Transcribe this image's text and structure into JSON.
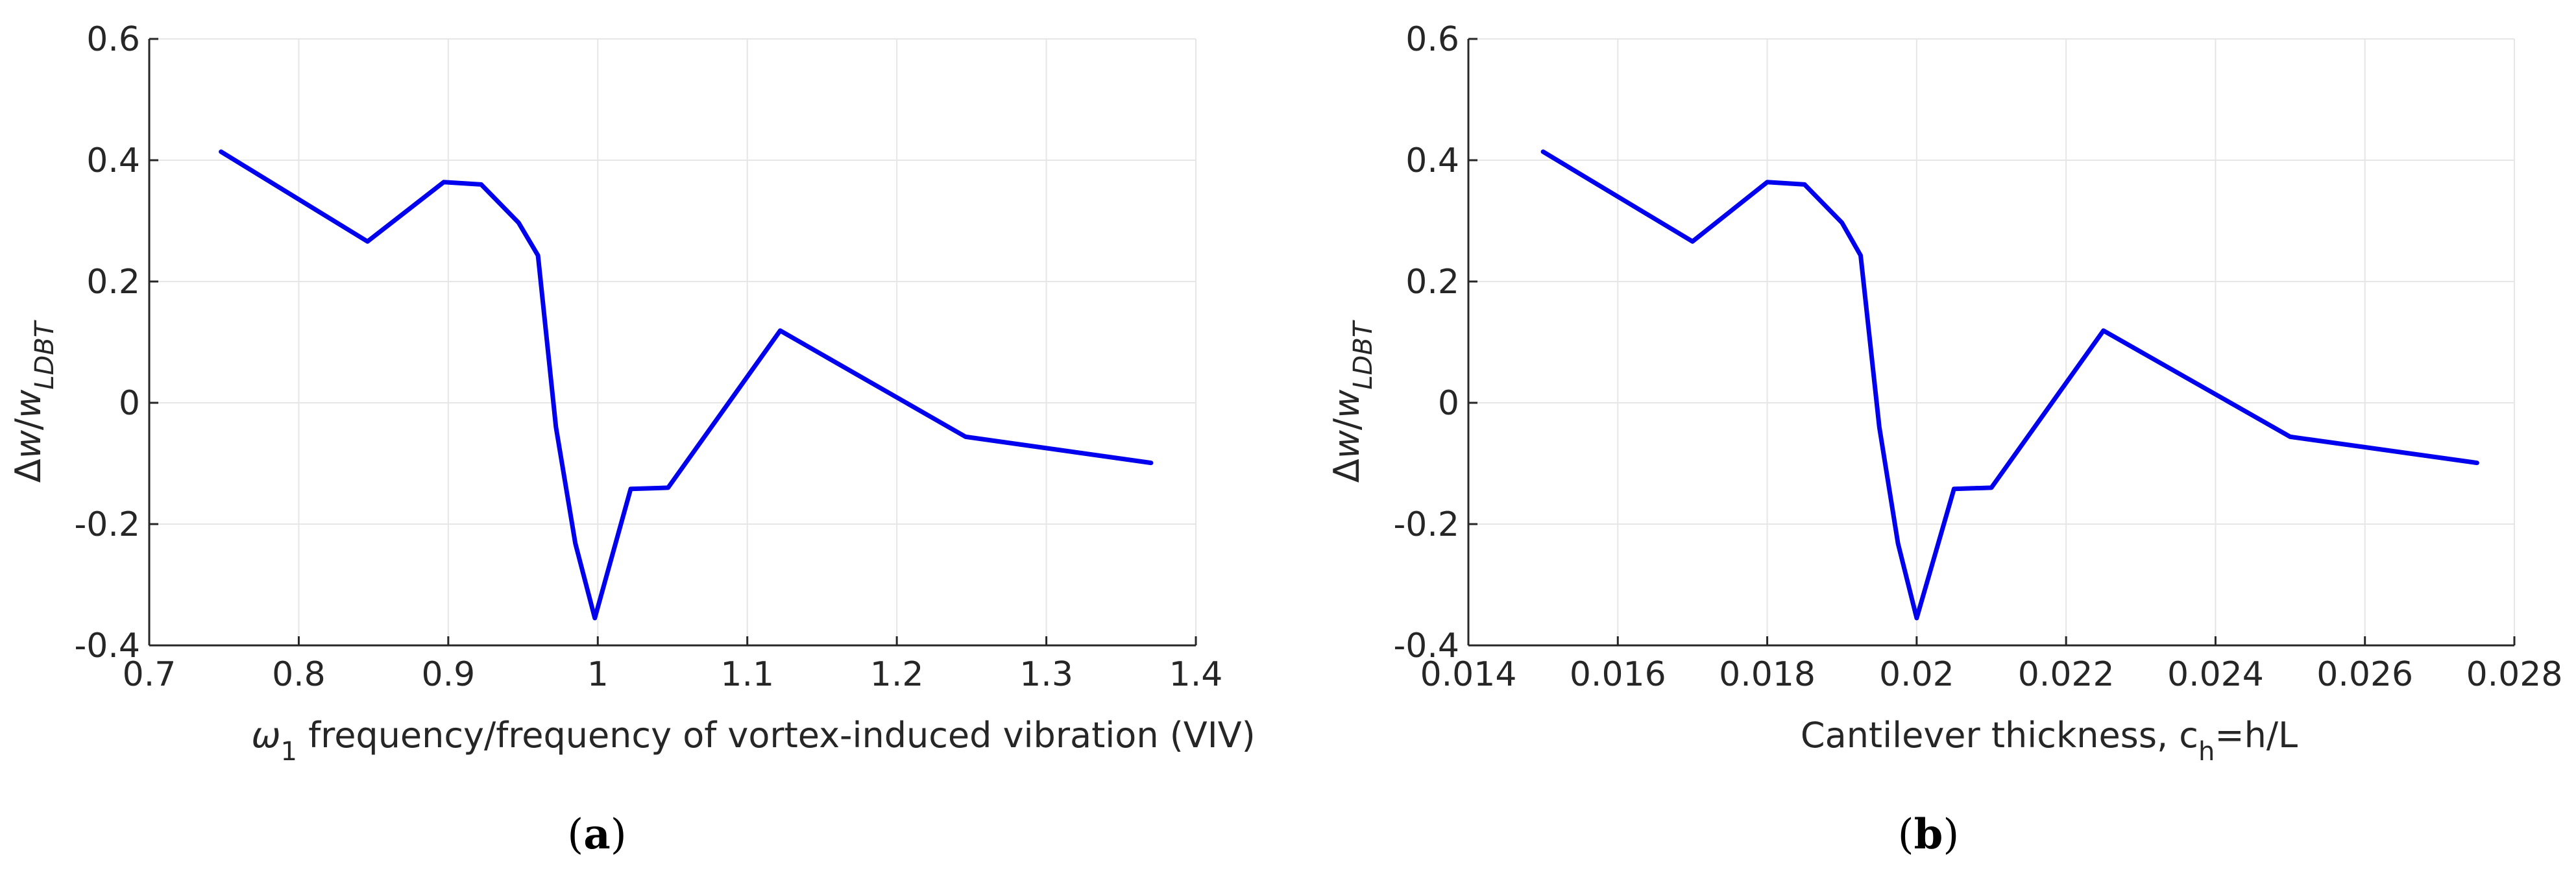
{
  "figure": {
    "colors": {
      "series": "#0000ee",
      "grid": "#e6e6e6",
      "axis": "#262626"
    }
  },
  "chart_data": [
    {
      "type": "line",
      "panel": "a",
      "title": "",
      "xlabel": {
        "symbol": "ω",
        "subscript": "1",
        "text": " frequency/frequency of vortex-induced vibration (VIV)"
      },
      "ylabel": {
        "prefix": "Δ",
        "var": "w",
        "sep": "/",
        "var2": "w",
        "subscript": "LDBT"
      },
      "xlim": [
        0.7,
        1.4
      ],
      "ylim": [
        -0.4,
        0.6
      ],
      "xticks": [
        0.7,
        0.8,
        0.9,
        1.0,
        1.1,
        1.2,
        1.3,
        1.4
      ],
      "xtick_labels": [
        "0.7",
        "0.8",
        "0.9",
        "1",
        "1.1",
        "1.2",
        "1.3",
        "1.4"
      ],
      "yticks": [
        -0.4,
        -0.2,
        0,
        0.2,
        0.4,
        0.6
      ],
      "ytick_labels": [
        "-0.4",
        "-0.2",
        "0",
        "0.2",
        "0.4",
        "0.6"
      ],
      "grid": true,
      "caption": {
        "open": "(",
        "letter": "a",
        "close": ")"
      },
      "series": [
        {
          "name": "Δw/w_LDBT",
          "x": [
            0.748,
            0.846,
            0.897,
            0.922,
            0.947,
            0.96,
            0.972,
            0.985,
            0.998,
            1.022,
            1.047,
            1.122,
            1.246,
            1.37
          ],
          "y": [
            0.414,
            0.266,
            0.364,
            0.36,
            0.297,
            0.243,
            -0.04,
            -0.232,
            -0.355,
            -0.142,
            -0.14,
            0.119,
            -0.056,
            -0.099
          ]
        }
      ]
    },
    {
      "type": "line",
      "panel": "b",
      "title": "",
      "xlabel": {
        "text": "Cantilever thickness, c",
        "subscript": "h",
        "suffix": "=h/L"
      },
      "ylabel": {
        "prefix": "Δ",
        "var": "w",
        "sep": "/",
        "var2": "w",
        "subscript": "LDBT"
      },
      "xlim": [
        0.014,
        0.028
      ],
      "ylim": [
        -0.4,
        0.6
      ],
      "xticks": [
        0.014,
        0.016,
        0.018,
        0.02,
        0.022,
        0.024,
        0.026,
        0.028
      ],
      "xtick_labels": [
        "0.014",
        "0.016",
        "0.018",
        "0.02",
        "0.022",
        "0.024",
        "0.026",
        "0.028"
      ],
      "yticks": [
        -0.4,
        -0.2,
        0,
        0.2,
        0.4,
        0.6
      ],
      "ytick_labels": [
        "-0.4",
        "-0.2",
        "0",
        "0.2",
        "0.4",
        "0.6"
      ],
      "grid": true,
      "caption": {
        "open": "(",
        "letter": "b",
        "close": ")"
      },
      "series": [
        {
          "name": "Δw/w_LDBT",
          "x": [
            0.015,
            0.017,
            0.018,
            0.0185,
            0.019,
            0.01925,
            0.0195,
            0.01975,
            0.02,
            0.0205,
            0.021,
            0.0225,
            0.025,
            0.0275
          ],
          "y": [
            0.414,
            0.266,
            0.364,
            0.36,
            0.297,
            0.243,
            -0.04,
            -0.232,
            -0.355,
            -0.142,
            -0.14,
            0.119,
            -0.056,
            -0.099
          ]
        }
      ]
    }
  ]
}
